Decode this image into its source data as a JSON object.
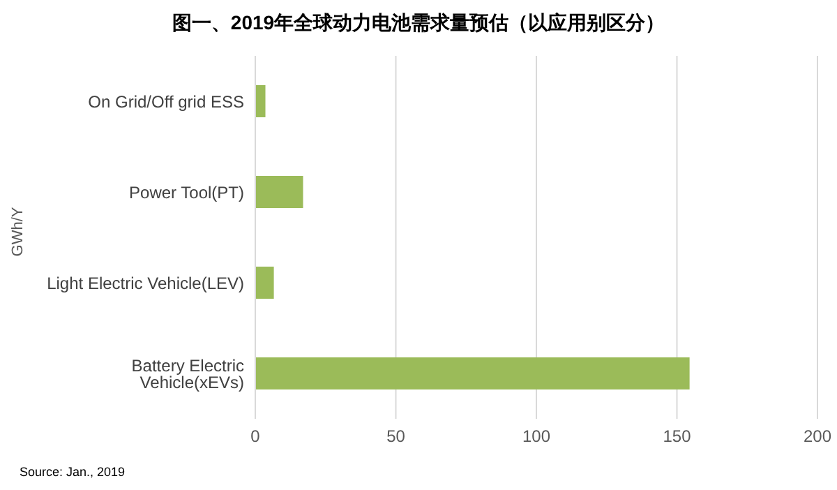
{
  "chart_data": {
    "type": "bar",
    "orientation": "horizontal",
    "title": "图一、2019年全球动力电池需求量预估（以应用别区分）",
    "ylabel": "GWh/Y",
    "categories": [
      "On Grid/Off grid ESS",
      "Power Tool(PT)",
      "Light Electric Vehicle(LEV)",
      "Battery Electric Vehicle(xEVs)"
    ],
    "values": [
      3.6,
      17,
      6.6,
      154.5
    ],
    "color": "#9bbb59",
    "xlim": [
      0,
      200
    ],
    "xticks": [
      0,
      50,
      100,
      150,
      200
    ],
    "grid": "x",
    "annotations": [
      "Source: Jan., 2019"
    ]
  }
}
